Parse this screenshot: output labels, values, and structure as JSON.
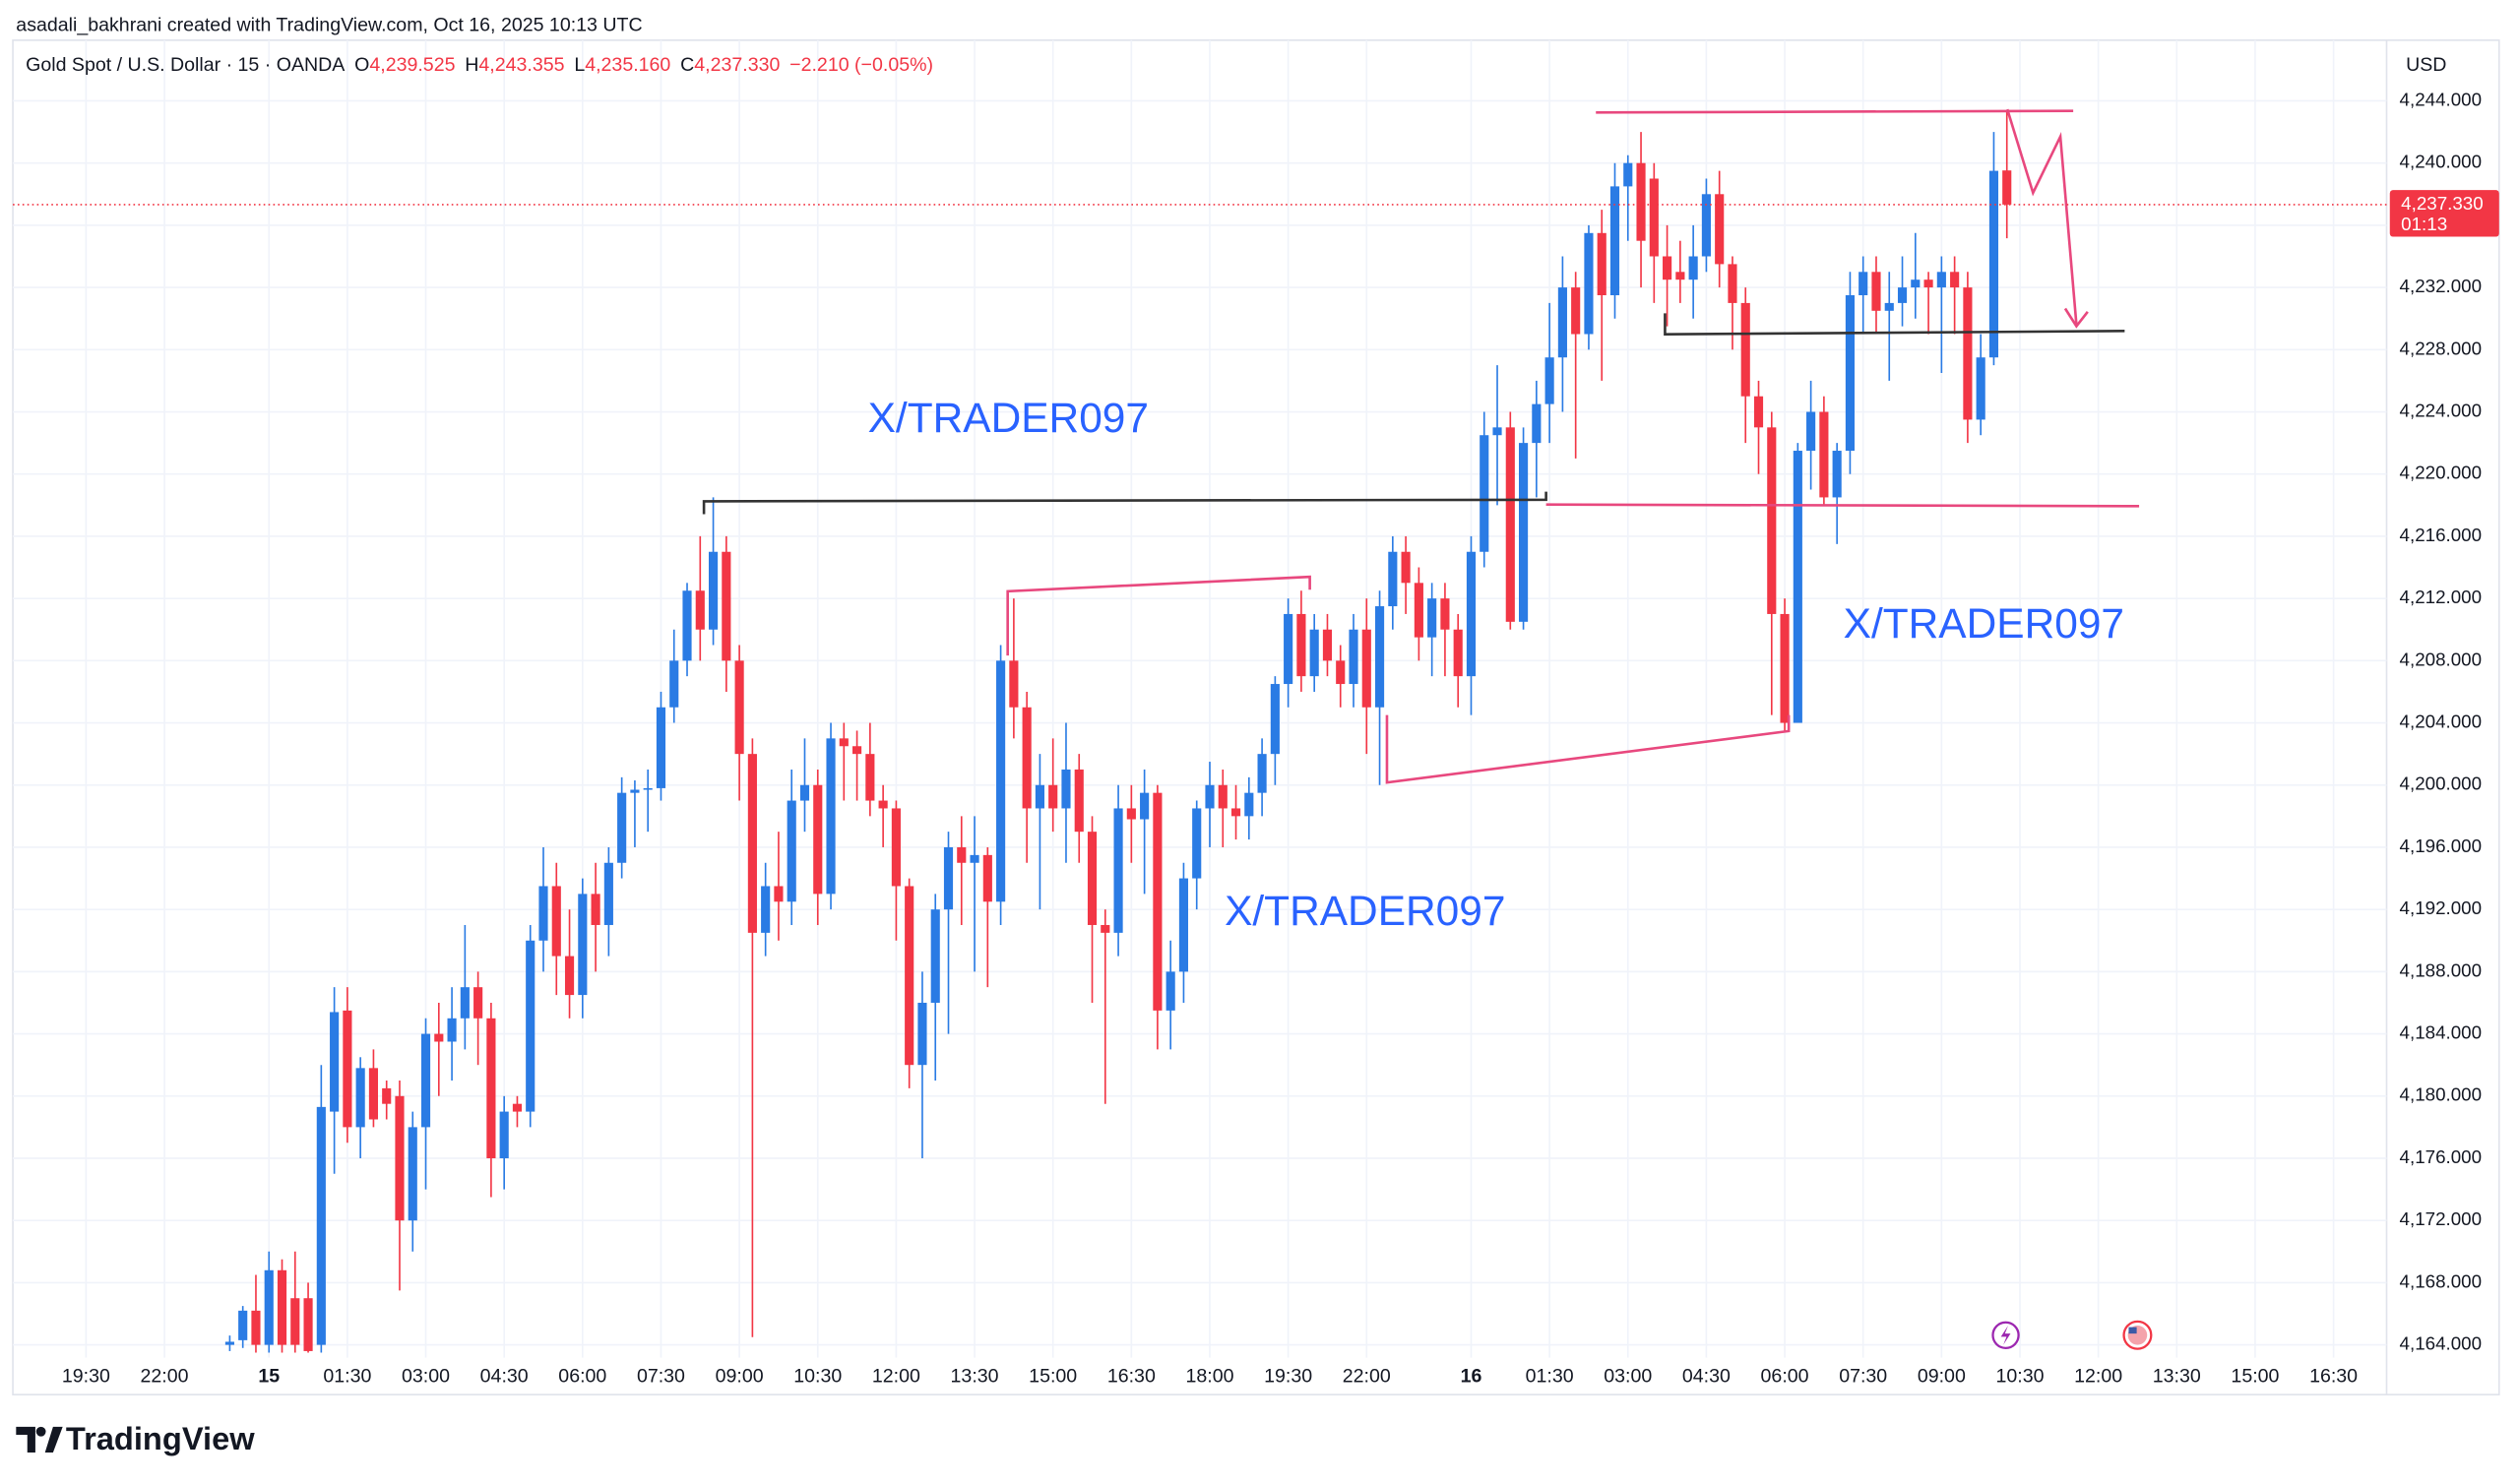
{
  "chart_data": {
    "type": "candlestick",
    "author_line": "asadali_bakhrani created with TradingView.com, Oct 16, 2025 10:13 UTC",
    "title": "Gold Spot / U.S. Dollar · 15 · OANDA",
    "ohlc_legend": [
      {
        "key": "O",
        "text": "4,239.525"
      },
      {
        "key": "H",
        "text": "4,243.355"
      },
      {
        "key": "L",
        "text": "4,235.160"
      },
      {
        "key": "C",
        "text": "4,237.330"
      }
    ],
    "change": "−2.210 (−0.05%)",
    "currency": "USD",
    "last_price": {
      "value": 4237.33,
      "label": "4,237.330"
    },
    "countdown": "01:13",
    "annotations": [
      "X/TRADER097",
      "X/TRADER097",
      "X/TRADER097"
    ],
    "brand": "TradingView",
    "up_color": "#2a7be4",
    "down_color": "#f23645",
    "grid": true,
    "xlim": [
      -16.6,
      164.2
    ],
    "ylim": [
      4160.8,
      4247.9
    ],
    "xticks": [
      {
        "value": -11,
        "label": "19:30"
      },
      {
        "value": -5,
        "label": "22:00"
      },
      {
        "value": 3,
        "label": "15"
      },
      {
        "value": 9,
        "label": "01:30"
      },
      {
        "value": 15,
        "label": "03:00"
      },
      {
        "value": 21,
        "label": "04:30"
      },
      {
        "value": 27,
        "label": "06:00"
      },
      {
        "value": 33,
        "label": "07:30"
      },
      {
        "value": 39,
        "label": "09:00"
      },
      {
        "value": 45,
        "label": "10:30"
      },
      {
        "value": 51,
        "label": "12:00"
      },
      {
        "value": 57,
        "label": "13:30"
      },
      {
        "value": 63,
        "label": "15:00"
      },
      {
        "value": 69,
        "label": "16:30"
      },
      {
        "value": 75,
        "label": "18:00"
      },
      {
        "value": 81,
        "label": "19:30"
      },
      {
        "value": 87,
        "label": "22:00"
      },
      {
        "value": 95,
        "label": "16"
      },
      {
        "value": 101,
        "label": "01:30"
      },
      {
        "value": 107,
        "label": "03:00"
      },
      {
        "value": 113,
        "label": "04:30"
      },
      {
        "value": 119,
        "label": "06:00"
      },
      {
        "value": 125,
        "label": "07:30"
      },
      {
        "value": 131,
        "label": "09:00"
      },
      {
        "value": 137,
        "label": "10:30"
      },
      {
        "value": 143,
        "label": "12:00"
      },
      {
        "value": 149,
        "label": "13:30"
      },
      {
        "value": 155,
        "label": "15:00"
      },
      {
        "value": 161,
        "label": "16:30"
      }
    ],
    "yticks": [
      {
        "value": 4164,
        "label": "4,164.000"
      },
      {
        "value": 4168,
        "label": "4,168.000"
      },
      {
        "value": 4172,
        "label": "4,172.000"
      },
      {
        "value": 4176,
        "label": "4,176.000"
      },
      {
        "value": 4180,
        "label": "4,180.000"
      },
      {
        "value": 4184,
        "label": "4,184.000"
      },
      {
        "value": 4188,
        "label": "4,188.000"
      },
      {
        "value": 4192,
        "label": "4,192.000"
      },
      {
        "value": 4196,
        "label": "4,196.000"
      },
      {
        "value": 4200,
        "label": "4,200.000"
      },
      {
        "value": 4204,
        "label": "4,204.000"
      },
      {
        "value": 4208,
        "label": "4,208.000"
      },
      {
        "value": 4212,
        "label": "4,212.000"
      },
      {
        "value": 4216,
        "label": "4,216.000"
      },
      {
        "value": 4220,
        "label": "4,220.000"
      },
      {
        "value": 4224,
        "label": "4,224.000"
      },
      {
        "value": 4228,
        "label": "4,228.000"
      },
      {
        "value": 4232,
        "label": "4,232.000"
      },
      {
        "value": 4236,
        "label": "4,236.000"
      },
      {
        "value": 4240,
        "label": "4,240.000"
      },
      {
        "value": 4244,
        "label": "4,244.000"
      }
    ],
    "open": [
      4164,
      4164.3,
      4166.2,
      4164,
      4168.8,
      4167,
      4167,
      4164,
      4179,
      4185.5,
      4178,
      4181.8,
      4180.5,
      4180,
      4172,
      4178,
      4184,
      4183.5,
      4185,
      4187,
      4185,
      4176,
      4179.5,
      4179,
      4190,
      4193.5,
      4189,
      4186.5,
      4193,
      4191,
      4195,
      4199.5,
      4199.7,
      4199.8,
      4205,
      4208,
      4212.5,
      4210,
      4215,
      4208,
      4202,
      4190.5,
      4193.5,
      4192.5,
      4199,
      4200,
      4193,
      4203,
      4202.5,
      4202,
      4199,
      4198.5,
      4193.5,
      4182,
      4186,
      4192,
      4196,
      4195,
      4195.5,
      4192.5,
      4208,
      4205,
      4198.5,
      4200,
      4198.5,
      4201,
      4197,
      4191,
      4190.5,
      4198.5,
      4197.8,
      4199.5,
      4185.5,
      4188,
      4194,
      4198.5,
      4200,
      4198.5,
      4198,
      4199.5,
      4202,
      4206.5,
      4211,
      4207,
      4210,
      4208,
      4206.5,
      4210,
      4205,
      4211.5,
      4215,
      4213,
      4209.5,
      4212,
      4210,
      4207,
      4215,
      4222.5,
      4223,
      4210.5,
      4222,
      4224.5,
      4227.5,
      4232,
      4229,
      4235.5,
      4231.5,
      4238.5,
      4240,
      4239,
      4234,
      4233,
      4232.5,
      4234,
      4238,
      4233.5,
      4231,
      4225,
      4223,
      4211,
      4204,
      4221.5,
      4224,
      4218.5,
      4221.5,
      4231.5,
      4233,
      4230.5,
      4231,
      4232,
      4232.5,
      4232,
      4233,
      4232,
      4223.5,
      4227.5,
      4239.525
    ],
    "high": [
      4164.6,
      4166.5,
      4168.5,
      4170,
      4169.5,
      4170,
      4168,
      4182,
      4187,
      4187,
      4182.5,
      4183,
      4181,
      4181,
      4179,
      4185,
      4186,
      4187,
      4191,
      4188,
      4186,
      4180,
      4180,
      4191,
      4196,
      4195,
      4192,
      4194,
      4195,
      4196,
      4200.5,
      4200.3,
      4201,
      4206,
      4210,
      4213,
      4216,
      4218.5,
      4216,
      4209,
      4203,
      4195,
      4197,
      4201,
      4203,
      4201,
      4204,
      4204,
      4203.5,
      4204,
      4200,
      4199,
      4194,
      4188,
      4193,
      4197,
      4198,
      4198,
      4196,
      4209,
      4212,
      4206,
      4202,
      4203,
      4204,
      4202,
      4198,
      4192,
      4200,
      4200,
      4201,
      4200,
      4190,
      4195,
      4199,
      4201.5,
      4201,
      4200,
      4200.5,
      4203,
      4207,
      4212,
      4212.5,
      4211,
      4211,
      4209,
      4211,
      4212,
      4212.5,
      4216,
      4216,
      4214,
      4213,
      4213,
      4211,
      4216,
      4224,
      4227,
      4224,
      4223,
      4226,
      4231,
      4234,
      4233,
      4236,
      4237,
      4240,
      4240.5,
      4242,
      4240,
      4236,
      4235,
      4236,
      4239,
      4239.5,
      4234,
      4232,
      4226,
      4224,
      4212,
      4222,
      4226,
      4225,
      4222,
      4233,
      4234,
      4234,
      4233,
      4234,
      4235.5,
      4233,
      4234,
      4234,
      4233,
      4229,
      4242,
      4243.355
    ],
    "low": [
      4163.6,
      4163.8,
      4163.5,
      4163.5,
      4163.5,
      4163.5,
      4163.5,
      4163.5,
      4175,
      4177,
      4176,
      4178,
      4178.5,
      4167.5,
      4170,
      4174,
      4180,
      4181,
      4183,
      4182,
      4173.5,
      4174,
      4178,
      4178,
      4188,
      4186.5,
      4185,
      4185,
      4188,
      4189,
      4194,
      4196,
      4197,
      4199,
      4204,
      4207,
      4208,
      4209,
      4206,
      4199,
      4164.5,
      4189,
      4190,
      4191,
      4197,
      4191,
      4192,
      4199,
      4199,
      4198,
      4196,
      4190,
      4180.5,
      4176,
      4181,
      4184,
      4191,
      4188,
      4187,
      4191,
      4203,
      4195,
      4192,
      4197,
      4195,
      4195,
      4186,
      4179.5,
      4189,
      4195,
      4193,
      4183,
      4183,
      4186,
      4192,
      4196,
      4196,
      4196.5,
      4196.5,
      4198,
      4200,
      4205,
      4206,
      4206,
      4207,
      4205,
      4205,
      4202,
      4200,
      4210,
      4211,
      4208,
      4207,
      4207,
      4205,
      4204.5,
      4214,
      4218,
      4210,
      4210,
      4218.5,
      4222,
      4224,
      4221,
      4228,
      4226,
      4230,
      4235,
      4232,
      4231,
      4229.5,
      4231,
      4230,
      4233,
      4232,
      4228,
      4222,
      4220,
      4204.5,
      4203.5,
      4204,
      4219,
      4218,
      4215.5,
      4220,
      4229,
      4229,
      4226,
      4229.5,
      4230,
      4229,
      4226.5,
      4229,
      4222,
      4222.5,
      4227,
      4235.16
    ],
    "close": [
      4164.2,
      4166.2,
      4164,
      4168.8,
      4164,
      4164,
      4163.6,
      4179.3,
      4185.4,
      4178,
      4181.8,
      4178.5,
      4179.5,
      4172,
      4178,
      4184,
      4183.5,
      4185,
      4187,
      4185,
      4176,
      4179,
      4179,
      4190,
      4193.5,
      4189,
      4186.5,
      4193,
      4191,
      4195,
      4199.5,
      4199.7,
      4199.8,
      4205,
      4208,
      4212.5,
      4210,
      4215,
      4208,
      4202,
      4190.5,
      4193.5,
      4192.5,
      4199,
      4200,
      4193,
      4203,
      4202.5,
      4202,
      4199,
      4198.5,
      4193.5,
      4182,
      4186,
      4192,
      4196,
      4195,
      4195.5,
      4192.5,
      4208,
      4205,
      4198.5,
      4200,
      4198.5,
      4201,
      4197,
      4191,
      4190.5,
      4198.5,
      4197.8,
      4199.5,
      4185.5,
      4188,
      4194,
      4198.5,
      4200,
      4198.5,
      4198,
      4199.5,
      4202,
      4206.5,
      4211,
      4207,
      4210,
      4208,
      4206.5,
      4210,
      4205,
      4211.5,
      4215,
      4213,
      4209.5,
      4212,
      4210,
      4207,
      4215,
      4222.5,
      4223,
      4210.5,
      4222,
      4224.5,
      4227.5,
      4232,
      4229,
      4235.5,
      4231.5,
      4238.5,
      4240,
      4235,
      4234,
      4232.5,
      4232.5,
      4234,
      4238,
      4233.5,
      4231,
      4225,
      4223,
      4211,
      4204,
      4221.5,
      4224,
      4218.5,
      4221.5,
      4231.5,
      4233,
      4230.5,
      4231,
      4232,
      4232.5,
      4232,
      4233,
      4232,
      4223.5,
      4227.5,
      4239.5,
      4237.33
    ]
  }
}
